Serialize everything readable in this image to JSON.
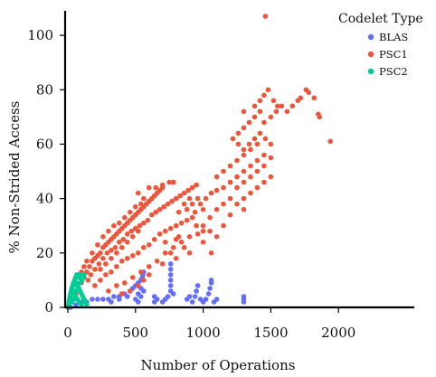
{
  "chart_data": {
    "type": "scatter",
    "xlabel": "Number of Operations",
    "ylabel": "% Non-Strided Access",
    "xlim": [
      -20,
      2560
    ],
    "ylim": [
      0,
      109
    ],
    "x_ticks": [
      0,
      500,
      1000,
      1500,
      2000
    ],
    "y_ticks": [
      0,
      20,
      40,
      60,
      80,
      100
    ],
    "grid": false,
    "legend": {
      "title": "Codelet Type",
      "placement": "top-right",
      "entries": [
        {
          "name": "BLAS",
          "color": "#636efa"
        },
        {
          "name": "PSC1",
          "color": "#ef553b"
        },
        {
          "name": "PSC2",
          "color": "#00cc96"
        }
      ]
    },
    "series": [
      {
        "name": "BLAS",
        "color": "#636efa",
        "points": [
          [
            20,
            0
          ],
          [
            60,
            1
          ],
          [
            100,
            2
          ],
          [
            140,
            2
          ],
          [
            180,
            3
          ],
          [
            220,
            3
          ],
          [
            260,
            3
          ],
          [
            300,
            3
          ],
          [
            340,
            4
          ],
          [
            380,
            4
          ],
          [
            420,
            5
          ],
          [
            460,
            6
          ],
          [
            480,
            7
          ],
          [
            500,
            8
          ],
          [
            520,
            9
          ],
          [
            540,
            10
          ],
          [
            550,
            11
          ],
          [
            555,
            12
          ],
          [
            560,
            13
          ],
          [
            500,
            3
          ],
          [
            520,
            5
          ],
          [
            540,
            7
          ],
          [
            320,
            2
          ],
          [
            380,
            3
          ],
          [
            440,
            4
          ],
          [
            520,
            2
          ],
          [
            540,
            4
          ],
          [
            560,
            6
          ],
          [
            640,
            2
          ],
          [
            640,
            4
          ],
          [
            660,
            3
          ],
          [
            700,
            2
          ],
          [
            720,
            3
          ],
          [
            740,
            4
          ],
          [
            760,
            6
          ],
          [
            760,
            8
          ],
          [
            760,
            10
          ],
          [
            760,
            12
          ],
          [
            760,
            14
          ],
          [
            760,
            16
          ],
          [
            780,
            5
          ],
          [
            880,
            3
          ],
          [
            900,
            4
          ],
          [
            920,
            2
          ],
          [
            940,
            4
          ],
          [
            950,
            6
          ],
          [
            960,
            8
          ],
          [
            980,
            3
          ],
          [
            1000,
            2
          ],
          [
            1020,
            3
          ],
          [
            1040,
            5
          ],
          [
            1050,
            7
          ],
          [
            1060,
            9
          ],
          [
            1060,
            10
          ],
          [
            1080,
            2
          ],
          [
            1100,
            3
          ],
          [
            1300,
            2
          ],
          [
            1300,
            3
          ],
          [
            1300,
            4
          ]
        ]
      },
      {
        "name": "PSC1",
        "color": "#ef553b",
        "points": [
          [
            60,
            5
          ],
          [
            80,
            7
          ],
          [
            100,
            9
          ],
          [
            120,
            11
          ],
          [
            140,
            13
          ],
          [
            160,
            15
          ],
          [
            180,
            17
          ],
          [
            200,
            18
          ],
          [
            220,
            19
          ],
          [
            240,
            20
          ],
          [
            260,
            22
          ],
          [
            280,
            23
          ],
          [
            300,
            24
          ],
          [
            320,
            25
          ],
          [
            340,
            26
          ],
          [
            360,
            27
          ],
          [
            380,
            28
          ],
          [
            400,
            29
          ],
          [
            420,
            30
          ],
          [
            440,
            31
          ],
          [
            460,
            32
          ],
          [
            480,
            33
          ],
          [
            500,
            34
          ],
          [
            520,
            35
          ],
          [
            540,
            36
          ],
          [
            560,
            37
          ],
          [
            580,
            38
          ],
          [
            600,
            39
          ],
          [
            620,
            40
          ],
          [
            640,
            41
          ],
          [
            660,
            42
          ],
          [
            680,
            43
          ],
          [
            700,
            44
          ],
          [
            150,
            10
          ],
          [
            170,
            12
          ],
          [
            200,
            14
          ],
          [
            230,
            16
          ],
          [
            260,
            18
          ],
          [
            290,
            20
          ],
          [
            320,
            21
          ],
          [
            350,
            22
          ],
          [
            380,
            24
          ],
          [
            410,
            25
          ],
          [
            440,
            27
          ],
          [
            470,
            28
          ],
          [
            500,
            29
          ],
          [
            530,
            30
          ],
          [
            560,
            31
          ],
          [
            590,
            32
          ],
          [
            620,
            34
          ],
          [
            650,
            35
          ],
          [
            680,
            36
          ],
          [
            710,
            37
          ],
          [
            740,
            38
          ],
          [
            770,
            39
          ],
          [
            800,
            40
          ],
          [
            830,
            41
          ],
          [
            860,
            42
          ],
          [
            890,
            43
          ],
          [
            920,
            44
          ],
          [
            950,
            45
          ],
          [
            200,
            8
          ],
          [
            240,
            10
          ],
          [
            280,
            12
          ],
          [
            320,
            13
          ],
          [
            360,
            15
          ],
          [
            400,
            17
          ],
          [
            440,
            18
          ],
          [
            480,
            19
          ],
          [
            520,
            20
          ],
          [
            560,
            22
          ],
          [
            600,
            23
          ],
          [
            640,
            25
          ],
          [
            680,
            27
          ],
          [
            720,
            28
          ],
          [
            760,
            29
          ],
          [
            800,
            30
          ],
          [
            840,
            31
          ],
          [
            880,
            32
          ],
          [
            920,
            33
          ],
          [
            300,
            6
          ],
          [
            360,
            8
          ],
          [
            420,
            9
          ],
          [
            480,
            11
          ],
          [
            540,
            13
          ],
          [
            600,
            15
          ],
          [
            660,
            17
          ],
          [
            720,
            20
          ],
          [
            780,
            22
          ],
          [
            840,
            24
          ],
          [
            900,
            26
          ],
          [
            960,
            27
          ],
          [
            1000,
            28
          ],
          [
            400,
            5
          ],
          [
            460,
            6
          ],
          [
            520,
            8
          ],
          [
            560,
            10
          ],
          [
            600,
            12
          ],
          [
            700,
            16
          ],
          [
            800,
            25
          ],
          [
            820,
            35
          ],
          [
            860,
            38
          ],
          [
            900,
            40
          ],
          [
            940,
            35
          ],
          [
            980,
            38
          ],
          [
            1020,
            40
          ],
          [
            1060,
            42
          ],
          [
            1100,
            43
          ],
          [
            1000,
            30
          ],
          [
            1050,
            33
          ],
          [
            1100,
            36
          ],
          [
            1150,
            38
          ],
          [
            1200,
            40
          ],
          [
            1150,
            44
          ],
          [
            1200,
            46
          ],
          [
            1250,
            48
          ],
          [
            1300,
            50
          ],
          [
            1350,
            52
          ],
          [
            1400,
            54
          ],
          [
            1450,
            56
          ],
          [
            1100,
            48
          ],
          [
            1150,
            50
          ],
          [
            1200,
            52
          ],
          [
            1250,
            54
          ],
          [
            1300,
            56
          ],
          [
            1350,
            58
          ],
          [
            1400,
            60
          ],
          [
            1250,
            44
          ],
          [
            1300,
            46
          ],
          [
            1350,
            48
          ],
          [
            1400,
            50
          ],
          [
            1450,
            52
          ],
          [
            1500,
            55
          ],
          [
            1300,
            40
          ],
          [
            1350,
            42
          ],
          [
            1400,
            44
          ],
          [
            1450,
            46
          ],
          [
            1500,
            48
          ],
          [
            1250,
            38
          ],
          [
            1300,
            36
          ],
          [
            1200,
            34
          ],
          [
            1220,
            62
          ],
          [
            1260,
            64
          ],
          [
            1300,
            66
          ],
          [
            1340,
            68
          ],
          [
            1380,
            70
          ],
          [
            1420,
            72
          ],
          [
            1260,
            60
          ],
          [
            1300,
            58
          ],
          [
            1340,
            60
          ],
          [
            1380,
            62
          ],
          [
            1420,
            64
          ],
          [
            1460,
            62
          ],
          [
            1500,
            60
          ],
          [
            1300,
            72
          ],
          [
            1380,
            74
          ],
          [
            1420,
            76
          ],
          [
            1450,
            78
          ],
          [
            1480,
            80
          ],
          [
            1520,
            76
          ],
          [
            1550,
            74
          ],
          [
            1450,
            68
          ],
          [
            1500,
            70
          ],
          [
            1540,
            72
          ],
          [
            1580,
            74
          ],
          [
            1620,
            72
          ],
          [
            1660,
            74
          ],
          [
            1700,
            76
          ],
          [
            1720,
            77
          ],
          [
            1760,
            80
          ],
          [
            1780,
            79
          ],
          [
            1820,
            77
          ],
          [
            1850,
            71
          ],
          [
            1860,
            70
          ],
          [
            1940,
            61
          ],
          [
            1460,
            107
          ],
          [
            1000,
            36
          ],
          [
            1050,
            28
          ],
          [
            1100,
            26
          ],
          [
            1150,
            30
          ],
          [
            1060,
            20
          ],
          [
            1000,
            24
          ],
          [
            950,
            30
          ],
          [
            900,
            20
          ],
          [
            860,
            22
          ],
          [
            800,
            18
          ],
          [
            760,
            20
          ],
          [
            720,
            24
          ],
          [
            820,
            26
          ],
          [
            880,
            36
          ],
          [
            920,
            38
          ],
          [
            960,
            40
          ],
          [
            560,
            40
          ],
          [
            540,
            38
          ],
          [
            500,
            37
          ],
          [
            460,
            35
          ],
          [
            420,
            33
          ],
          [
            600,
            44
          ],
          [
            650,
            44
          ],
          [
            700,
            45
          ],
          [
            750,
            46
          ],
          [
            780,
            46
          ],
          [
            520,
            42
          ],
          [
            380,
            31
          ],
          [
            340,
            30
          ],
          [
            300,
            28
          ],
          [
            260,
            26
          ],
          [
            220,
            23
          ],
          [
            180,
            20
          ],
          [
            140,
            17
          ],
          [
            120,
            15
          ],
          [
            100,
            13
          ],
          [
            520,
            28
          ],
          [
            480,
            26
          ],
          [
            440,
            24
          ],
          [
            400,
            22
          ],
          [
            360,
            20
          ],
          [
            320,
            18
          ],
          [
            280,
            16
          ],
          [
            240,
            14
          ]
        ]
      },
      {
        "name": "PSC2",
        "color": "#00cc96",
        "points": [
          [
            2,
            0
          ],
          [
            5,
            1
          ],
          [
            8,
            2
          ],
          [
            12,
            3
          ],
          [
            16,
            4
          ],
          [
            20,
            5
          ],
          [
            25,
            6
          ],
          [
            30,
            7
          ],
          [
            36,
            8
          ],
          [
            42,
            9
          ],
          [
            50,
            10
          ],
          [
            58,
            11
          ],
          [
            66,
            12
          ],
          [
            74,
            12
          ],
          [
            80,
            11
          ],
          [
            90,
            12
          ],
          [
            100,
            12
          ],
          [
            110,
            12
          ],
          [
            120,
            12
          ],
          [
            60,
            9
          ],
          [
            70,
            8
          ],
          [
            80,
            7
          ],
          [
            90,
            6
          ],
          [
            100,
            5
          ],
          [
            110,
            4
          ],
          [
            120,
            3
          ],
          [
            130,
            2
          ],
          [
            140,
            1
          ],
          [
            40,
            5
          ],
          [
            55,
            4
          ],
          [
            70,
            3
          ],
          [
            85,
            2
          ],
          [
            100,
            1
          ],
          [
            30,
            2
          ],
          [
            45,
            3
          ],
          [
            60,
            6
          ],
          [
            75,
            7
          ],
          [
            90,
            9
          ],
          [
            105,
            10
          ],
          [
            115,
            11
          ]
        ]
      }
    ]
  }
}
